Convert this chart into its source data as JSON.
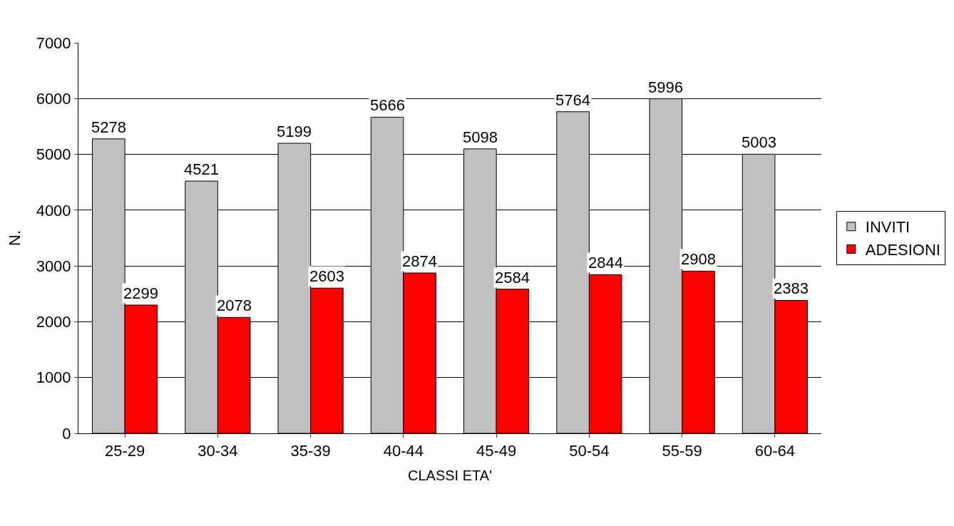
{
  "chart_data": {
    "type": "bar",
    "xlabel": "CLASSI ETA'",
    "ylabel": "N.",
    "categories": [
      "25-29",
      "30-34",
      "35-39",
      "40-44",
      "45-49",
      "50-54",
      "55-59",
      "60-64"
    ],
    "series": [
      {
        "name": "INVITI",
        "color": "#c0c0c0",
        "values": [
          5278,
          4521,
          5199,
          5666,
          5098,
          5764,
          5996,
          5003
        ]
      },
      {
        "name": "ADESIONI",
        "color": "#ff0000",
        "values": [
          2299,
          2078,
          2603,
          2874,
          2584,
          2844,
          2908,
          2383
        ]
      }
    ],
    "ylim": [
      0,
      7000
    ],
    "yticks": [
      0,
      1000,
      2000,
      3000,
      4000,
      5000,
      6000,
      7000
    ],
    "grid": "y",
    "legend": "right",
    "data_labels": true
  }
}
